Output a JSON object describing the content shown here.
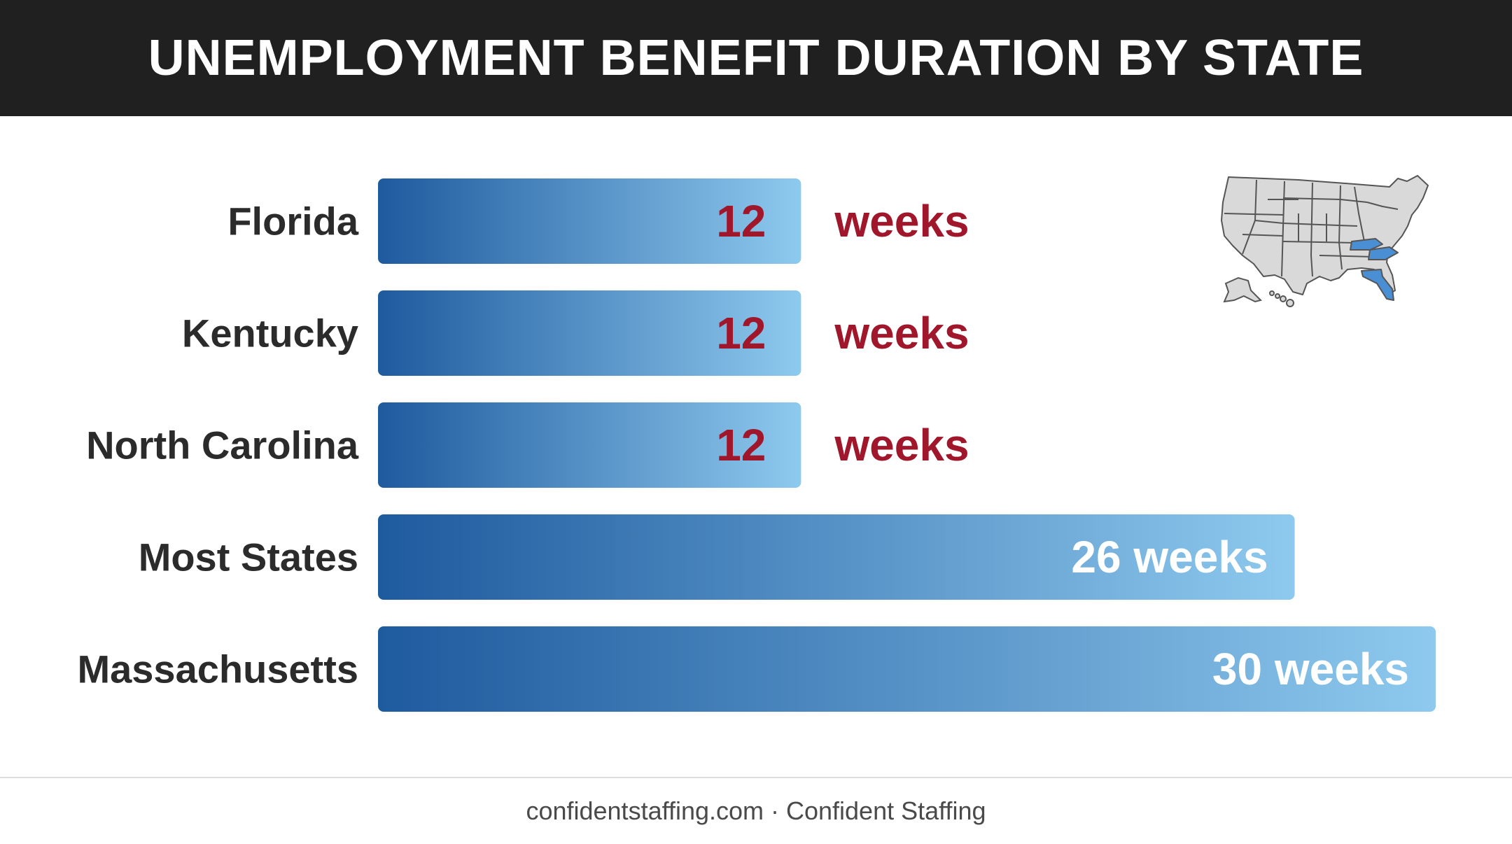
{
  "title": "UNEMPLOYMENT BENEFIT DURATION BY STATE",
  "footer": "confidentstaffing.com · Confident Staffing",
  "colors": {
    "header_bg": "#202020",
    "bar_dark": "#1e5a9e",
    "bar_light": "#8ec9ee",
    "accent_red": "#a0172b",
    "label_text": "#2b2b2b",
    "map_fill": "#d9d9d9",
    "map_highlight": "#4a8fd4"
  },
  "map_icon": "us-map-icon",
  "chart_data": {
    "type": "bar",
    "orientation": "horizontal",
    "title": "UNEMPLOYMENT BENEFIT DURATION BY STATE",
    "xlabel": "",
    "ylabel": "",
    "unit": "weeks",
    "xlim": [
      0,
      30
    ],
    "grid": false,
    "legend": "none",
    "categories": [
      "Florida",
      "Kentucky",
      "North Carolina",
      "Most States",
      "Massachusetts"
    ],
    "values": [
      12,
      12,
      12,
      26,
      30
    ],
    "value_labels": [
      "12",
      "12",
      "12",
      "26 weeks",
      "30 weeks"
    ],
    "outside_labels": [
      "weeks",
      "weeks",
      "weeks",
      "",
      ""
    ]
  }
}
